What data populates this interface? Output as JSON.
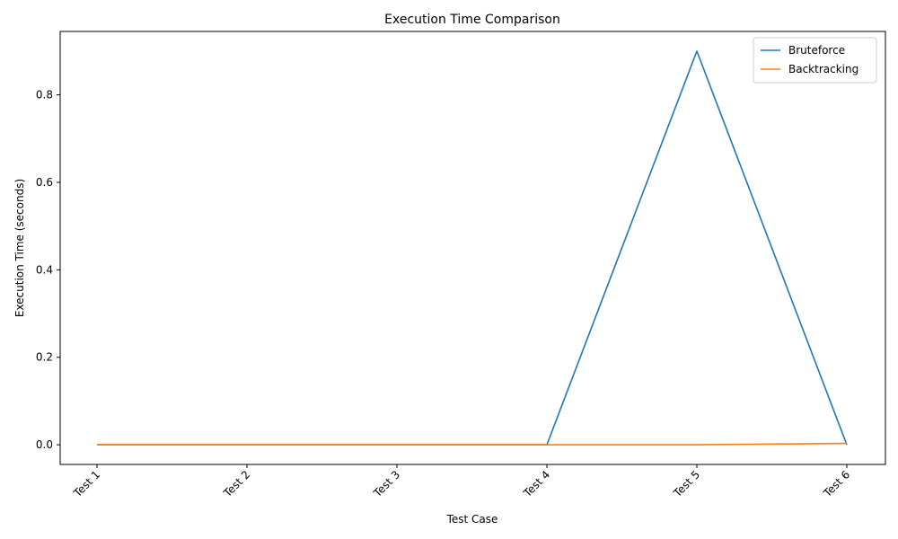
{
  "chart_data": {
    "type": "line",
    "title": "Execution Time Comparison",
    "xlabel": "Test Case",
    "ylabel": "Execution Time (seconds)",
    "categories": [
      "Test 1",
      "Test 2",
      "Test 3",
      "Test 4",
      "Test 5",
      "Test 6"
    ],
    "yticks": [
      "0.0",
      "0.2",
      "0.4",
      "0.6",
      "0.8"
    ],
    "ylim": [
      -0.045,
      0.945
    ],
    "grid": false,
    "legend": "top-right",
    "series": [
      {
        "name": "Bruteforce",
        "color": "#1f77b4",
        "values": [
          0.0,
          0.0,
          0.0,
          0.0,
          0.9,
          0.0
        ]
      },
      {
        "name": "Backtracking",
        "color": "#ff7f0e",
        "values": [
          0.0,
          0.0,
          0.0,
          0.0,
          0.0,
          0.003
        ]
      }
    ]
  }
}
